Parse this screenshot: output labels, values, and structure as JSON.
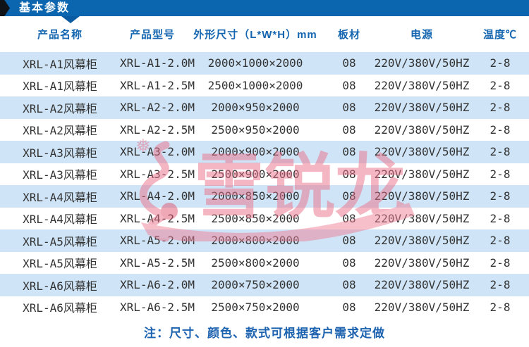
{
  "banner": {
    "title": "基本参数"
  },
  "table": {
    "columns": [
      "产品名称",
      "产品型号",
      "外形尺寸（L*W*H）mm",
      "板材",
      "电源",
      "温度℃"
    ],
    "rows": [
      [
        "XRL-A1风幕柜",
        "XRL-A1-2.0M",
        "2000×1000×2000",
        "08",
        "220V/380V/50HZ",
        "2-8"
      ],
      [
        "XRL-A1风幕柜",
        "XRL-A1-2.5M",
        "2500×1000×2000",
        "08",
        "220V/380V/50HZ",
        "2-8"
      ],
      [
        "XRL-A2风幕柜",
        "XRL-A2-2.0M",
        "2000×950×2000",
        "08",
        "220V/380V/50HZ",
        "2-8"
      ],
      [
        "XRL-A2风幕柜",
        "XRL-A2-2.5M",
        "2500×950×2000",
        "08",
        "220V/380V/50HZ",
        "2-8"
      ],
      [
        "XRL-A3风幕柜",
        "XRL-A3-2.0M",
        "2000×900×2000",
        "08",
        "220V/380V/50HZ",
        "2-8"
      ],
      [
        "XRL-A3风幕柜",
        "XRL-A3-2.5M",
        "2500×900×2000",
        "08",
        "220V/380V/50HZ",
        "2-8"
      ],
      [
        "XRL-A4风幕柜",
        "XRL-A4-2.0M",
        "2000×850×2000",
        "08",
        "220V/380V/50HZ",
        "2-8"
      ],
      [
        "XRL-A4风幕柜",
        "XRL-A4-2.5M",
        "2500×850×2000",
        "08",
        "220V/380V/50HZ",
        "2-8"
      ],
      [
        "XRL-A5风幕柜",
        "XRL-A5-2.0M",
        "2000×800×2000",
        "08",
        "220V/380V/50HZ",
        "2-8"
      ],
      [
        "XRL-A5风幕柜",
        "XRL-A5-2.5M",
        "2500×800×2000",
        "08",
        "220V/380V/50HZ",
        "2-8"
      ],
      [
        "XRL-A6风幕柜",
        "XRL-A6-2.0M",
        "2000×750×2000",
        "08",
        "220V/380V/50HZ",
        "2-8"
      ],
      [
        "XRL-A6风幕柜",
        "XRL-A6-2.5M",
        "2500×750×2000",
        "08",
        "220V/380V/50HZ",
        "2-8"
      ]
    ]
  },
  "note": "注：尺寸、颜色、款式可根据客户需求定做",
  "watermark": {
    "brand_text": "雪锐龙",
    "snowflake_icon": "❅"
  },
  "colors": {
    "banner_blue": "#0b66af",
    "banner_notch_blue": "#0a5ba2",
    "header_text_blue": "#1566b0",
    "row_alt_blue": "#cfe4f6",
    "note_blue": "#1e63b0",
    "watermark_pink": "#ea7088",
    "watermark_red": "#e0556f"
  }
}
